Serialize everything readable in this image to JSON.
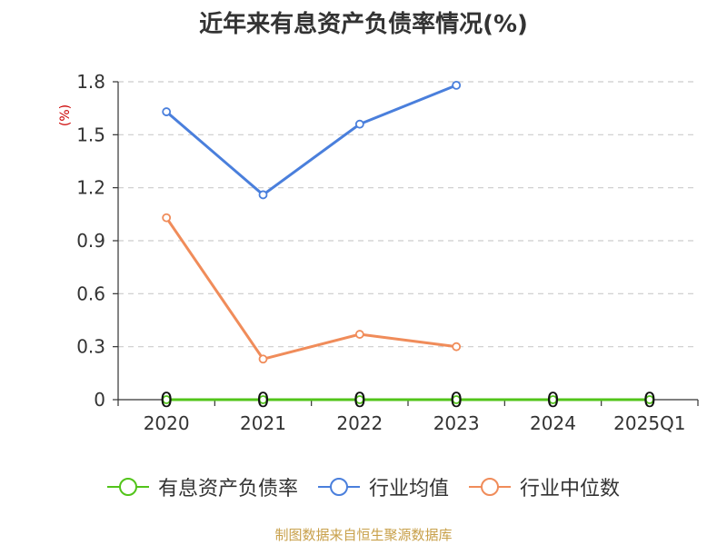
{
  "colors": {
    "有息资产负债率": "#52c41a",
    "行业均值": "#4a7fdc",
    "行业中位数": "#f08c5a",
    "ylabel": "#cc0000",
    "source": "#c8a04a"
  },
  "chart_data": {
    "type": "line",
    "title": "近年来有息资产负债率情况(%)",
    "ylabel": "(%)",
    "categories": [
      "2020",
      "2021",
      "2022",
      "2023",
      "2024",
      "2025Q1"
    ],
    "ylim": [
      0,
      1.8
    ],
    "yticks": [
      "0",
      "0.3",
      "0.6",
      "0.9",
      "1.2",
      "1.5",
      "1.8"
    ],
    "grid": true,
    "legend": "bottom",
    "series": [
      {
        "name": "有息资产负债率",
        "values": [
          0,
          0,
          0,
          0,
          0,
          0
        ],
        "data_labels": [
          "0",
          "0",
          "0",
          "0",
          "0",
          "0"
        ]
      },
      {
        "name": "行业均值",
        "values": [
          1.63,
          1.16,
          1.56,
          1.78,
          null,
          null
        ]
      },
      {
        "name": "行业中位数",
        "values": [
          1.03,
          0.23,
          0.37,
          0.3,
          null,
          null
        ]
      }
    ]
  },
  "source": "制图数据来自恒生聚源数据库"
}
